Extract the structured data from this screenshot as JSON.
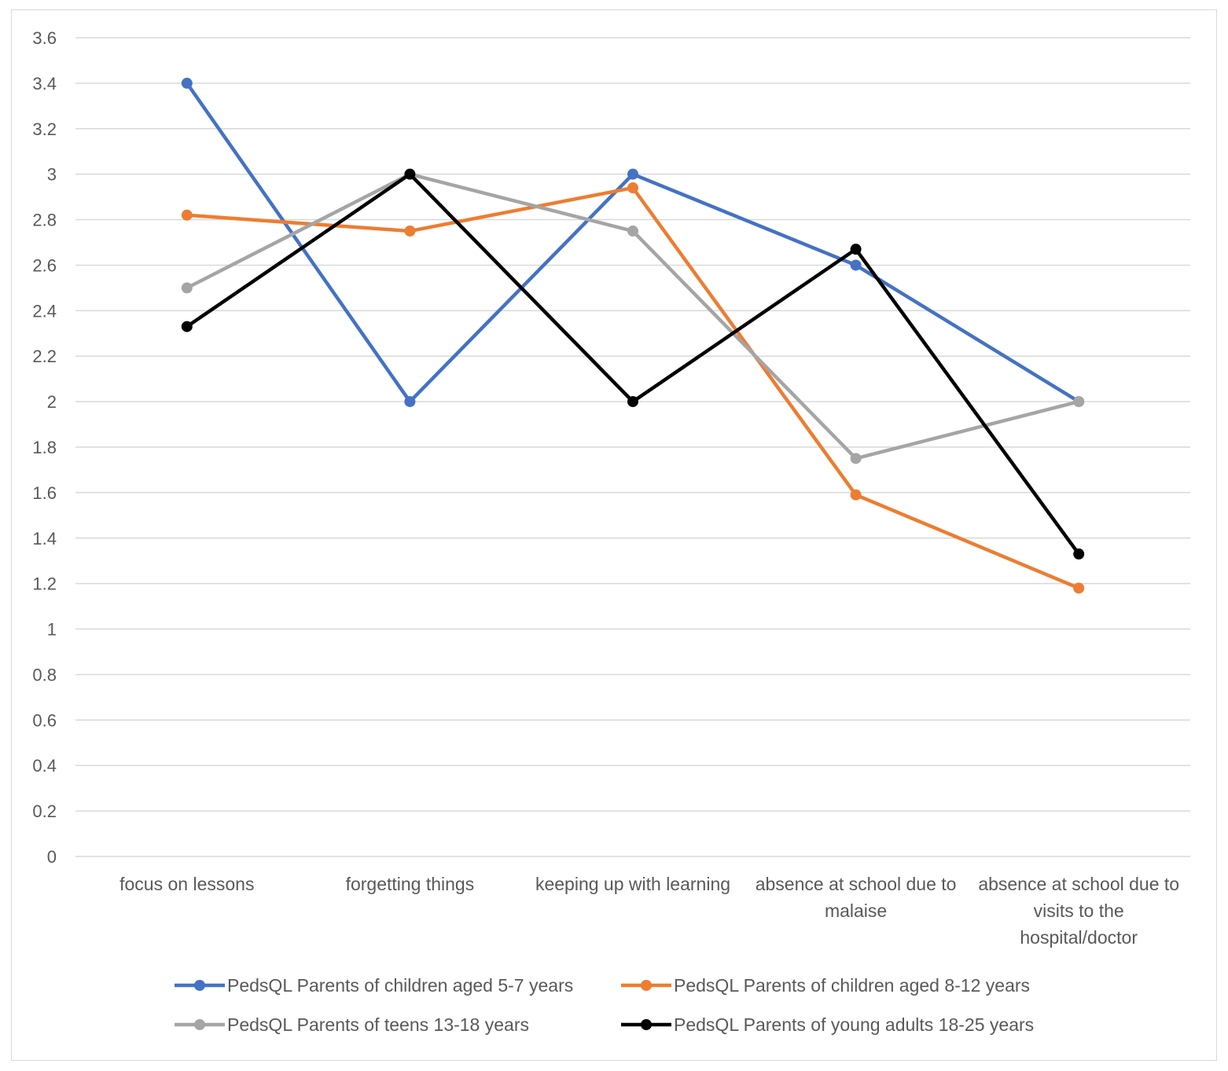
{
  "chart_data": {
    "type": "line",
    "title": "",
    "xlabel": "",
    "ylabel": "",
    "ylim": [
      0,
      3.6
    ],
    "y_ticks": [
      "0",
      "0.2",
      "0.4",
      "0.6",
      "0.8",
      "1",
      "1.2",
      "1.4",
      "1.6",
      "1.8",
      "2",
      "2.2",
      "2.4",
      "2.6",
      "2.8",
      "3",
      "3.2",
      "3.4",
      "3.6"
    ],
    "grid": true,
    "legend_position": "bottom",
    "categories": [
      [
        "focus on lessons"
      ],
      [
        "forgetting things"
      ],
      [
        "keeping up with learning"
      ],
      [
        "absence at school due to",
        "malaise"
      ],
      [
        "absence at school due to",
        "visits to the",
        "hospital/doctor"
      ]
    ],
    "series": [
      {
        "name": "PedsQL Parents of children aged 5-7 years",
        "color": "#4472C4",
        "values": [
          3.4,
          2.0,
          3.0,
          2.6,
          2.0
        ]
      },
      {
        "name": "PedsQL Parents of children aged 8-12 years",
        "color": "#ED7D31",
        "values": [
          2.82,
          2.75,
          2.94,
          1.59,
          1.18
        ]
      },
      {
        "name": "PedsQL Parents of teens 13-18 years",
        "color": "#A5A5A5",
        "values": [
          2.5,
          3.0,
          2.75,
          1.75,
          2.0
        ]
      },
      {
        "name": "PedsQL Parents of young adults 18-25 years",
        "color": "#000000",
        "values": [
          2.33,
          3.0,
          2.0,
          2.67,
          1.33
        ]
      }
    ]
  }
}
